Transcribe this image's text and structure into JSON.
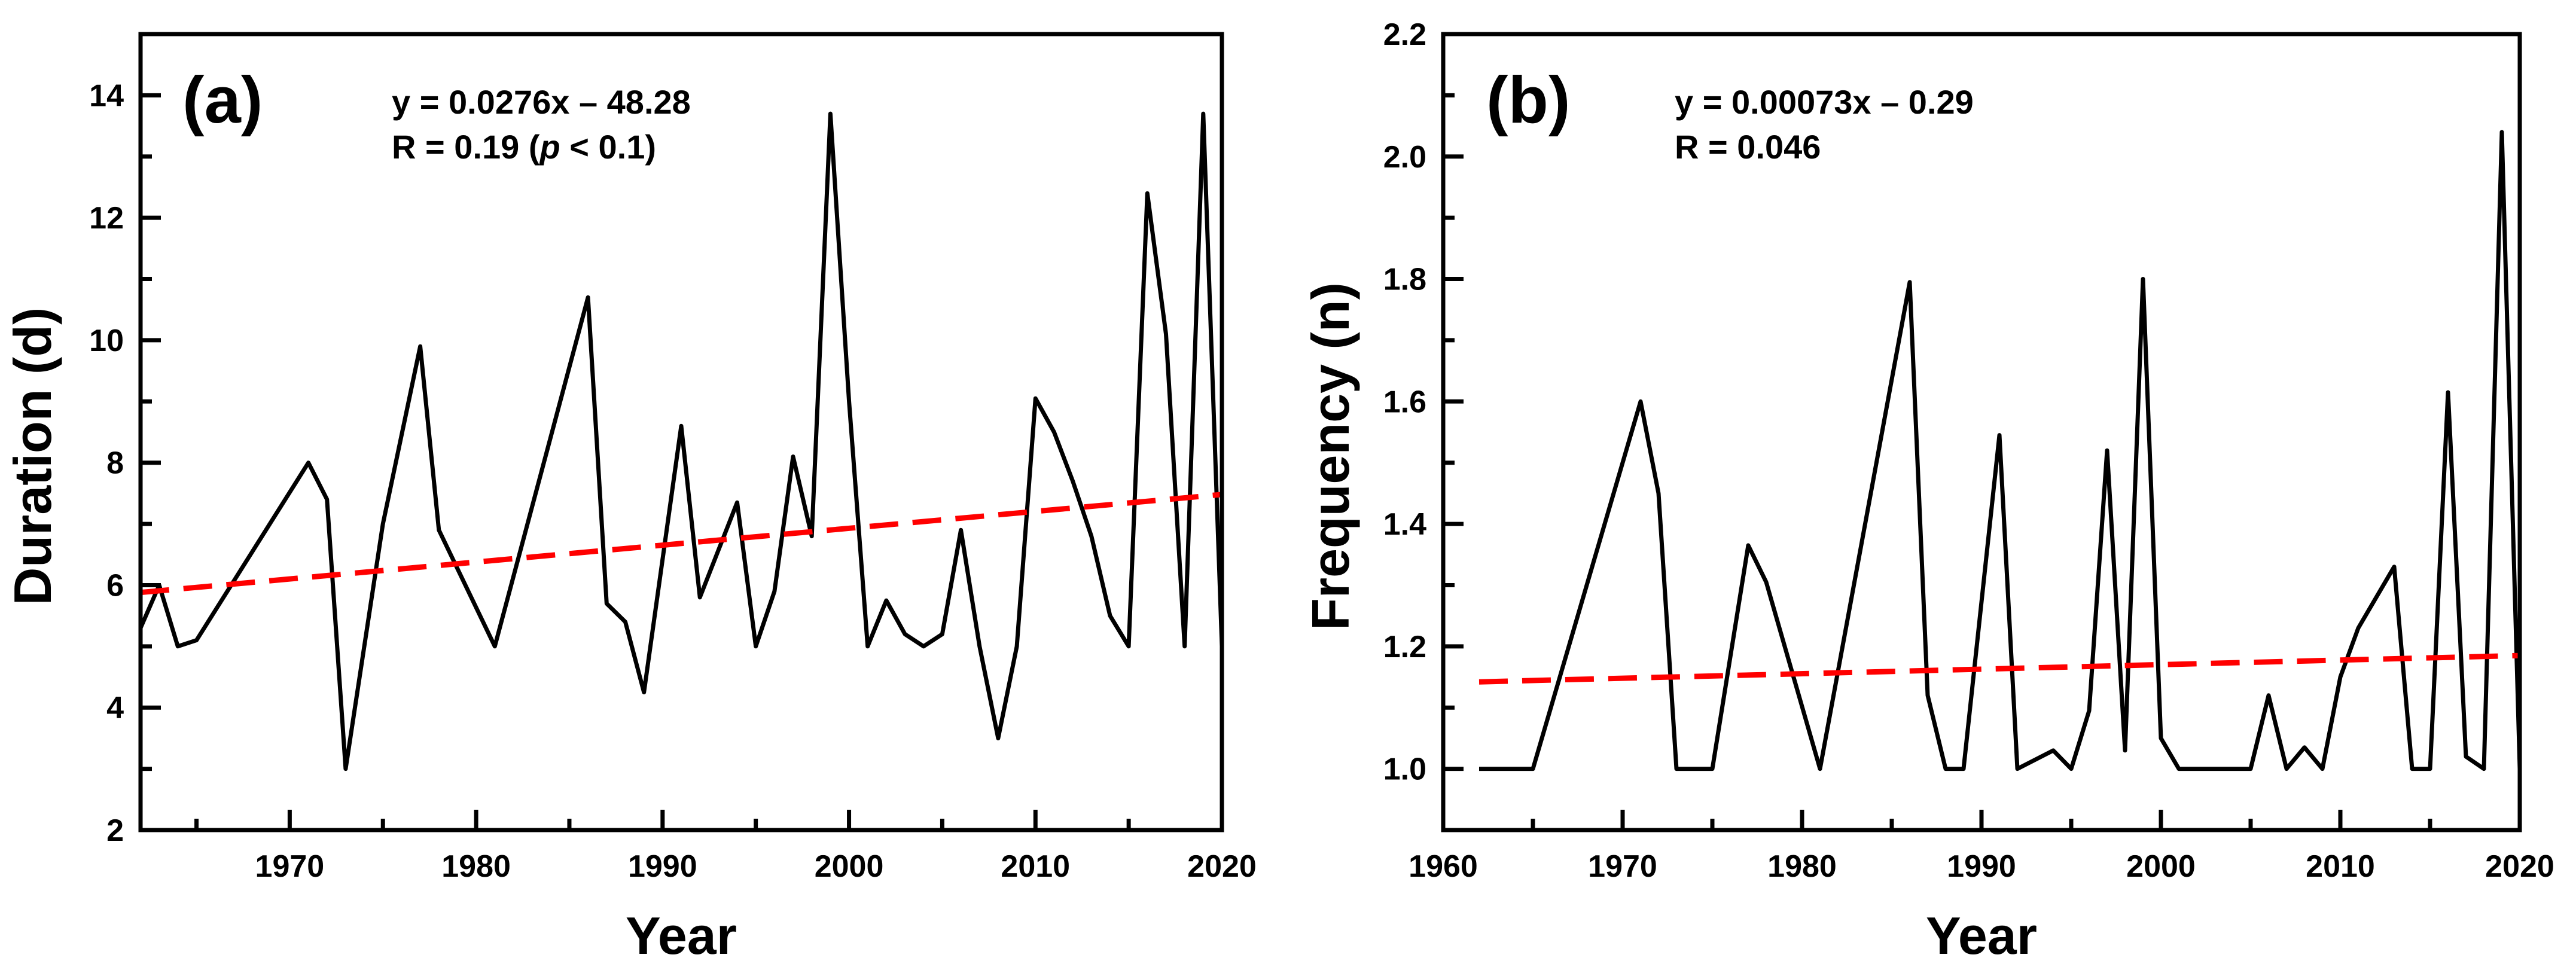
{
  "chart_data": [
    {
      "type": "line",
      "panel_label": "(a)",
      "xlabel": "Year",
      "ylabel": "Duration (d)",
      "xlim": [
        1962,
        2020
      ],
      "ylim": [
        2,
        15
      ],
      "xticks": [
        1970,
        1980,
        1990,
        2000,
        2010,
        2020
      ],
      "yticks": [
        2,
        4,
        6,
        8,
        10,
        12,
        14
      ],
      "annotations": [
        "y = 0.0276x – 48.28",
        "R = 0.19 (",
        "p",
        " < 0.1)"
      ],
      "series": [
        {
          "name": "Duration",
          "color": "#000000",
          "style": "solid",
          "x": [
            1962,
            1963,
            1964,
            1965,
            1971,
            1972,
            1973,
            1975,
            1977,
            1978,
            1981,
            1986,
            1987,
            1988,
            1989,
            1991,
            1992,
            1994,
            1995,
            1996,
            1997,
            1998,
            1999,
            2000,
            2001,
            2002,
            2003,
            2004,
            2005,
            2006,
            2007,
            2008,
            2009,
            2010,
            2011,
            2012,
            2013,
            2014,
            2015,
            2016,
            2017,
            2018,
            2019,
            2020
          ],
          "values": [
            5.3,
            6.0,
            5.0,
            5.1,
            8.0,
            7.4,
            3.0,
            7.0,
            9.9,
            6.9,
            5.0,
            10.7,
            5.7,
            5.4,
            4.25,
            8.6,
            5.8,
            7.35,
            5.0,
            5.9,
            8.1,
            6.8,
            13.7,
            9.0,
            5.0,
            5.75,
            5.2,
            5.0,
            5.2,
            6.9,
            5.0,
            3.5,
            5.0,
            9.05,
            8.5,
            7.7,
            6.8,
            5.5,
            5.0,
            12.4,
            10.1,
            5.0,
            13.7,
            5.0
          ]
        },
        {
          "name": "Linear fit",
          "color": "#ff0000",
          "style": "dashed",
          "x": [
            1962,
            2020
          ],
          "values": [
            5.88,
            7.48
          ]
        }
      ]
    },
    {
      "type": "line",
      "panel_label": "(b)",
      "xlabel": "Year",
      "ylabel": "Frequency (n)",
      "xlim": [
        1960,
        2020
      ],
      "ylim": [
        0.9,
        2.2
      ],
      "xticks": [
        1960,
        1970,
        1980,
        1990,
        2000,
        2010,
        2020
      ],
      "yticks": [
        1.0,
        1.2,
        1.4,
        1.6,
        1.8,
        2.0,
        2.2
      ],
      "annotations": [
        "y = 0.00073x – 0.29",
        "R = 0.046"
      ],
      "series": [
        {
          "name": "Frequency",
          "color": "#000000",
          "style": "solid",
          "x": [
            1962,
            1965,
            1971,
            1972,
            1973,
            1975,
            1977,
            1978,
            1981,
            1986,
            1987,
            1988,
            1989,
            1991,
            1992,
            1994,
            1995,
            1996,
            1997,
            1998,
            1999,
            2000,
            2001,
            2005,
            2006,
            2007,
            2008,
            2009,
            2010,
            2011,
            2013,
            2014,
            2015,
            2016,
            2017,
            2018,
            2019,
            2020
          ],
          "values": [
            1.0,
            1.0,
            1.6,
            1.45,
            1.0,
            1.0,
            1.365,
            1.305,
            1.0,
            1.795,
            1.12,
            1.0,
            1.0,
            1.545,
            1.0,
            1.03,
            1.0,
            1.095,
            1.52,
            1.03,
            1.8,
            1.05,
            1.0,
            1.0,
            1.12,
            1.0,
            1.035,
            1.0,
            1.15,
            1.23,
            1.33,
            1.0,
            1.0,
            1.615,
            1.02,
            1.0,
            2.04,
            1.0
          ]
        },
        {
          "name": "Linear fit",
          "color": "#ff0000",
          "style": "dashed",
          "x": [
            1962,
            2020
          ],
          "values": [
            1.142,
            1.185
          ]
        }
      ]
    }
  ]
}
